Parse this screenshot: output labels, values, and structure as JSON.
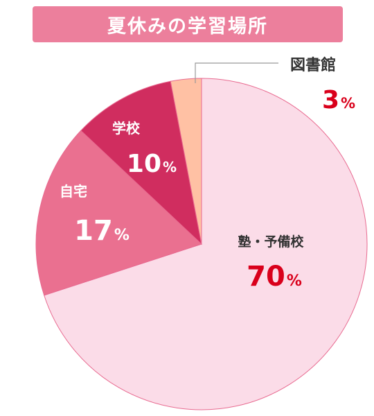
{
  "chart_data": {
    "type": "pie",
    "title": "夏休みの学習場所",
    "slices": [
      {
        "label": "塾・予備校",
        "value": 70,
        "percent_text": "70",
        "unit": "%",
        "color": "#fbdce8",
        "label_color": "#333333",
        "value_color": "#d9001b"
      },
      {
        "label": "自宅",
        "value": 17,
        "percent_text": "17",
        "unit": "%",
        "color": "#ea7090",
        "label_color": "#ffffff",
        "value_color": "#ffffff"
      },
      {
        "label": "学校",
        "value": 10,
        "percent_text": "10",
        "unit": "%",
        "color": "#d02d5f",
        "label_color": "#ffffff",
        "value_color": "#ffffff"
      },
      {
        "label": "図書館",
        "value": 3,
        "percent_text": "3",
        "unit": "%",
        "color": "#ffc1a4",
        "label_color": "#333333",
        "value_color": "#d9001b"
      }
    ],
    "start_angle": "12 o'clock",
    "direction": "clockwise",
    "outline_color": "#e86a90"
  }
}
